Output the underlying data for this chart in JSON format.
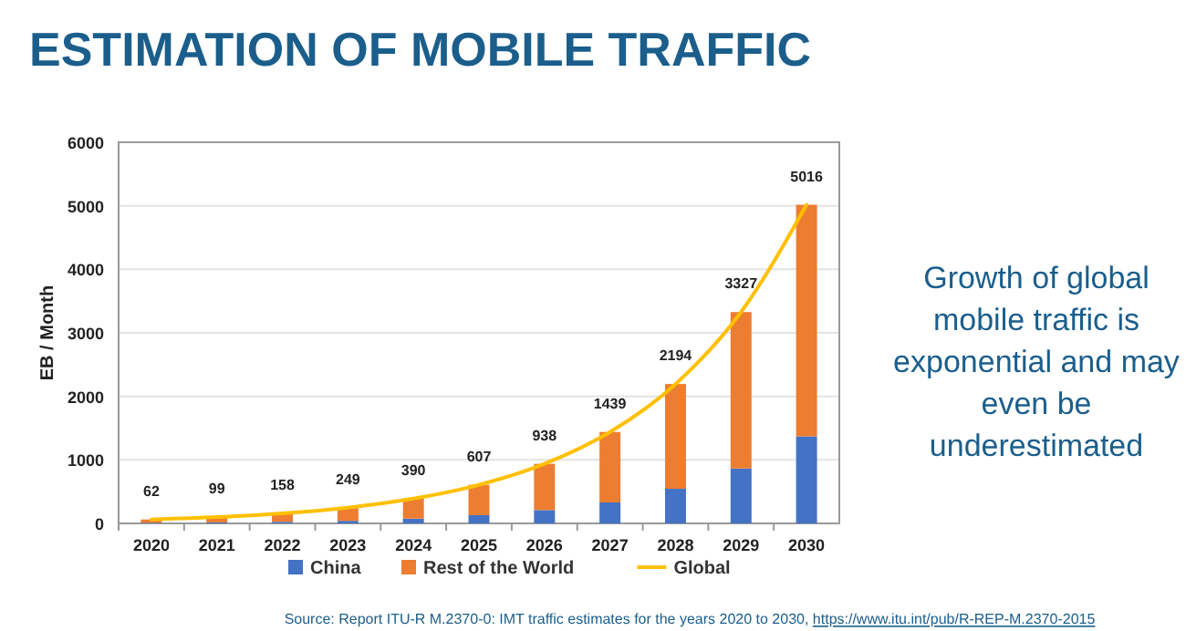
{
  "chart_data": {
    "type": "bar",
    "stacked": true,
    "title": "ESTIMATION OF MOBILE TRAFFIC",
    "ylabel": "EB / Month",
    "categories": [
      "2020",
      "2021",
      "2022",
      "2023",
      "2024",
      "2025",
      "2026",
      "2027",
      "2028",
      "2029",
      "2030"
    ],
    "series": [
      {
        "name": "China",
        "color": "#4472c4",
        "values": [
          10,
          15,
          25,
          40,
          75,
          130,
          210,
          330,
          545,
          865,
          1370
        ]
      },
      {
        "name": "Rest of the World",
        "color": "#ed7d31",
        "values": [
          52,
          84,
          133,
          209,
          315,
          477,
          728,
          1109,
          1649,
          2462,
          3646
        ]
      },
      {
        "name": "Global",
        "type": "line",
        "color": "#ffc000",
        "values": [
          62,
          99,
          158,
          249,
          390,
          607,
          938,
          1439,
          2194,
          3327,
          5016
        ]
      }
    ],
    "totals": [
      "62",
      "99",
      "158",
      "249",
      "390",
      "607",
      "938",
      "1439",
      "2194",
      "3327",
      "5016"
    ],
    "ylim": [
      0,
      6000
    ],
    "yticks": [
      0,
      1000,
      2000,
      3000,
      4000,
      5000,
      6000
    ],
    "grid": "y",
    "legend": "bottom",
    "annotations": [
      "Growth of global mobile traffic is exponential and may even be underestimated",
      "Source: Report  ITU-R  M.2370-0: IMT traffic estimates for the years 2020 to 2030, https://www.itu.int/pub/R-REP-M.2370-2015"
    ]
  }
}
